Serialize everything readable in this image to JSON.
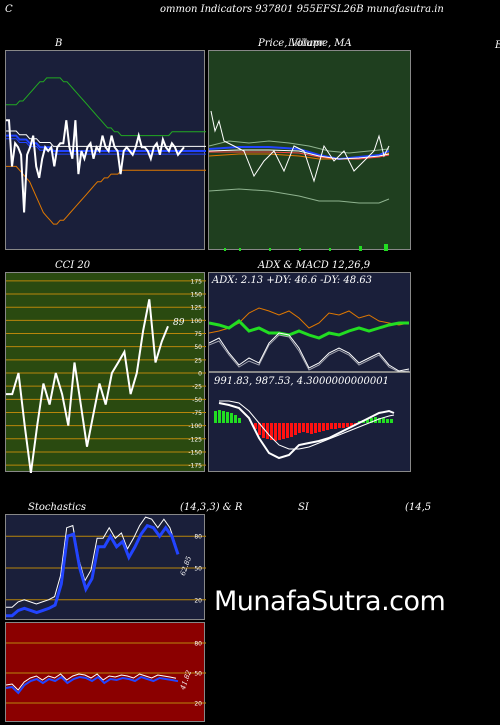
{
  "header": {
    "title": "ommon  Indicators 937801 955EFSL26B munafasutra.in",
    "left_letter": "C",
    "right_letter": "E"
  },
  "watermark": "MunafaSutra.com",
  "colors": {
    "bb_bg": "#1a1f3a",
    "price_bg": "#1f3f1f",
    "cci_bg": "#2a4a10",
    "adx_bg": "#1a1f3a",
    "stoch_bg": "#1a1f3a",
    "rsi_bg": "#8b0000",
    "band_upper": "#22aa22",
    "band_lower": "#e07800",
    "price_line": "#ffffff",
    "ma_blue": "#2244ff",
    "level_line": "#b8860b"
  },
  "panels": {
    "bb": {
      "title": "B"
    },
    "price": {
      "title": "Price,  Volume,  MA",
      "overlay_title": "Lilliapr"
    },
    "cci": {
      "title": "CCI 20",
      "last_label": "89"
    },
    "adx": {
      "title": "ADX  & MACD 12,26,9",
      "readout": "ADX: 2.13 +DY: 46.6  -DY: 48.63"
    },
    "macd": {
      "readout": "991.83,  987.53,  4.3000000000001"
    },
    "stoch": {
      "title": "Stochastics",
      "params": "(14,3,3) & R",
      "last_label": "62.85"
    },
    "rsi": {
      "title": "SI",
      "params": "(14,5",
      "last_label": "41.82"
    }
  },
  "chart_data": [
    {
      "type": "line",
      "title": "B",
      "series": [
        {
          "values": [
            104,
            104,
            92,
            98,
            97,
            95,
            80,
            95,
            97,
            100,
            92,
            89,
            94,
            97,
            96,
            97,
            92,
            97,
            98,
            98,
            104,
            97,
            94,
            104,
            90,
            96,
            94,
            97,
            98,
            94,
            97,
            96,
            100,
            97,
            96,
            100,
            97,
            96,
            90,
            96,
            97,
            96,
            95,
            97,
            100,
            97,
            97,
            96,
            94,
            97,
            98,
            95,
            99,
            97,
            96,
            98,
            97,
            95,
            96,
            97
          ]
        },
        {
          "values": [
            100,
            100,
            100,
            100,
            99,
            99,
            99,
            98,
            98,
            98,
            97,
            97,
            97,
            97,
            96,
            96,
            96,
            96,
            96,
            96,
            96,
            96,
            96,
            96,
            96,
            96,
            96,
            96,
            96,
            96,
            96,
            96,
            96,
            96,
            96,
            96,
            96,
            96,
            96,
            96,
            96,
            96,
            96,
            96,
            96,
            96,
            96,
            96,
            96,
            96,
            96,
            96,
            96,
            96,
            96,
            96,
            96,
            96,
            96,
            96
          ]
        },
        {
          "values": [
            108,
            108,
            108,
            108,
            109,
            109,
            110,
            111,
            112,
            113,
            114,
            114,
            115,
            115,
            115,
            115,
            115,
            114,
            114,
            113,
            112,
            111,
            110,
            109,
            108,
            107,
            106,
            105,
            104,
            103,
            102,
            102,
            101,
            101,
            100,
            100,
            100,
            100,
            100,
            100,
            100,
            100,
            100,
            100,
            100,
            100,
            100,
            100,
            100,
            101,
            101,
            101,
            101,
            101,
            101,
            101,
            101,
            101,
            101,
            101
          ]
        },
        {
          "values": [
            92,
            92,
            92,
            92,
            91,
            90,
            89,
            88,
            86,
            84,
            82,
            80,
            79,
            78,
            77,
            77,
            78,
            78,
            79,
            80,
            81,
            82,
            83,
            84,
            85,
            86,
            87,
            88,
            88,
            89,
            89,
            90,
            90,
            90,
            91,
            91,
            91,
            91,
            91,
            91,
            91,
            91,
            91,
            91,
            91,
            91,
            91,
            91,
            91,
            91,
            91,
            91,
            91,
            91,
            91,
            91,
            91,
            91,
            91,
            91
          ]
        }
      ]
    },
    {
      "type": "line",
      "title": "Price,  Volume,  MA",
      "series": []
    },
    {
      "type": "line",
      "title": "CCI 20",
      "y_ticks": [
        175,
        150,
        125,
        100,
        75,
        50,
        25,
        0,
        -25,
        -50,
        -75,
        -100,
        -125,
        -150,
        -175
      ],
      "ylim": [
        -190,
        190
      ],
      "series": [
        {
          "values": [
            -40,
            -40,
            0,
            -100,
            -190,
            -100,
            -20,
            -60,
            0,
            -40,
            -100,
            20,
            -60,
            -140,
            -80,
            -20,
            -60,
            0,
            20,
            40,
            -40,
            0,
            80,
            140,
            20,
            60,
            89
          ]
        }
      ]
    },
    {
      "type": "line",
      "title": "ADX  & MACD 12,26,9",
      "y_ticks": [],
      "series": []
    },
    {
      "type": "line",
      "title": "Stochastics",
      "y_ticks": [
        80,
        50,
        20
      ],
      "ylim": [
        0,
        100
      ],
      "series": [
        {
          "values": [
            5,
            5,
            10,
            12,
            10,
            8,
            10,
            12,
            15,
            35,
            80,
            82,
            50,
            30,
            40,
            70,
            70,
            80,
            70,
            75,
            60,
            70,
            82,
            90,
            88,
            80,
            88,
            80,
            62.85
          ]
        }
      ]
    },
    {
      "type": "line",
      "title": "SI",
      "y_ticks": [
        80,
        50,
        20
      ],
      "ylim": [
        0,
        100
      ],
      "series": [
        {
          "values": [
            35,
            36,
            30,
            38,
            42,
            44,
            40,
            44,
            42,
            46,
            40,
            44,
            46,
            45,
            42,
            46,
            40,
            44,
            43,
            45,
            44,
            42,
            46,
            44,
            42,
            45,
            44,
            43,
            41.82
          ]
        }
      ]
    }
  ]
}
